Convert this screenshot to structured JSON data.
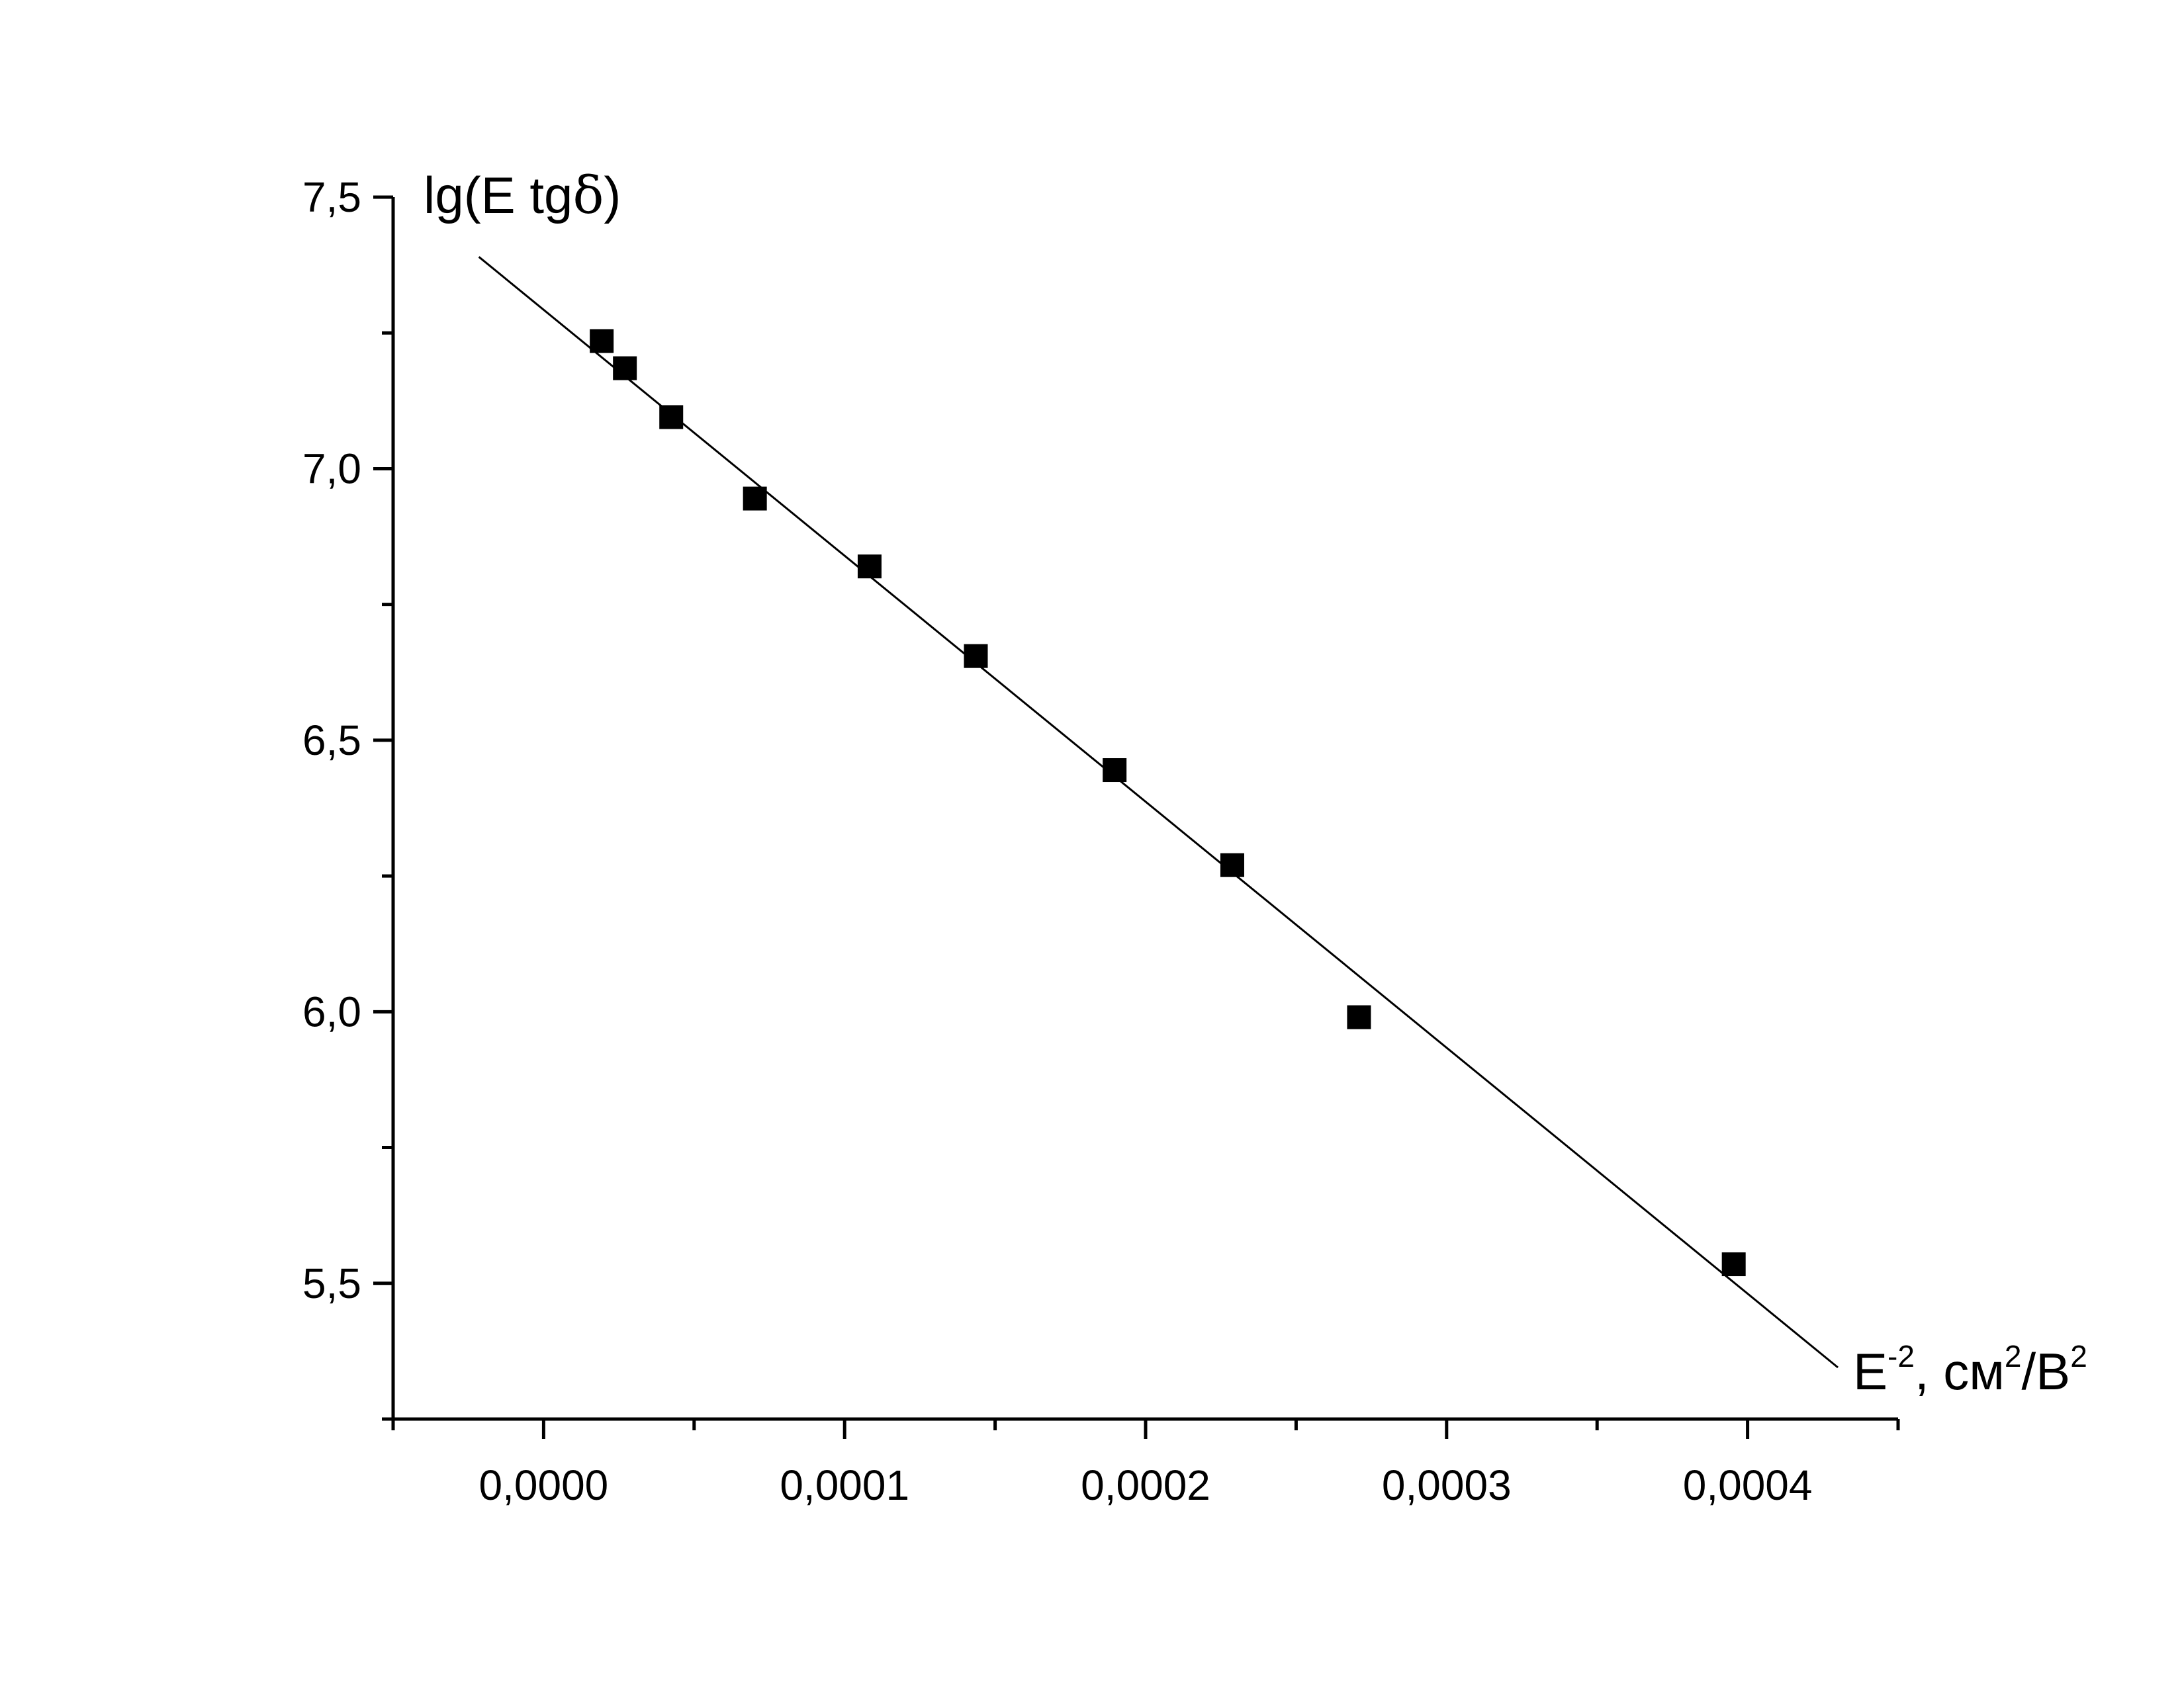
{
  "chart_data": {
    "type": "scatter",
    "title": "",
    "xlabel": {
      "base": "E",
      "sup": "-2",
      "rest": ", см",
      "sup2": "2",
      "rest2": "/В",
      "sup3": "2"
    },
    "ylabel": {
      "text": "lg(E tg",
      "greek": "δ",
      "close": ")"
    },
    "xlim": [
      -5e-05,
      0.00045
    ],
    "ylim": [
      5.25,
      7.5
    ],
    "x_ticks": [
      {
        "value": 0.0,
        "label": "0,0000"
      },
      {
        "value": 0.0001,
        "label": "0,0001"
      },
      {
        "value": 0.0002,
        "label": "0,0002"
      },
      {
        "value": 0.0003,
        "label": "0,0003"
      },
      {
        "value": 0.0004,
        "label": "0,0004"
      }
    ],
    "x_minor_ticks": [
      -5e-05,
      5e-05,
      0.00015,
      0.00025,
      0.00035,
      0.00045
    ],
    "y_ticks": [
      {
        "value": 5.5,
        "label": "5,5"
      },
      {
        "value": 6.0,
        "label": "6,0"
      },
      {
        "value": 6.5,
        "label": "6,5"
      },
      {
        "value": 7.0,
        "label": "7,0"
      },
      {
        "value": 7.5,
        "label": "7,5"
      }
    ],
    "y_minor_ticks": [
      5.25,
      5.75,
      6.25,
      6.75,
      7.25
    ],
    "grid": false,
    "legend": "none",
    "series": [
      {
        "marker": "square",
        "color": "#000000",
        "points": [
          {
            "x": 1.93e-05,
            "y": 7.235
          },
          {
            "x": 2.7e-05,
            "y": 7.185
          },
          {
            "x": 4.24e-05,
            "y": 7.095
          },
          {
            "x": 7.02e-05,
            "y": 6.945
          },
          {
            "x": 0.0001083,
            "y": 6.82
          },
          {
            "x": 0.0001436,
            "y": 6.655
          },
          {
            "x": 0.0001897,
            "y": 6.445
          },
          {
            "x": 0.0002288,
            "y": 6.27
          },
          {
            "x": 0.0002709,
            "y": 5.99
          },
          {
            "x": 0.0003954,
            "y": 5.535
          }
        ]
      }
    ],
    "fit_line": {
      "color": "#000000",
      "start": {
        "x": -2.15e-05,
        "y": 7.39
      },
      "end": {
        "x": 0.00043,
        "y": 5.345
      }
    }
  }
}
